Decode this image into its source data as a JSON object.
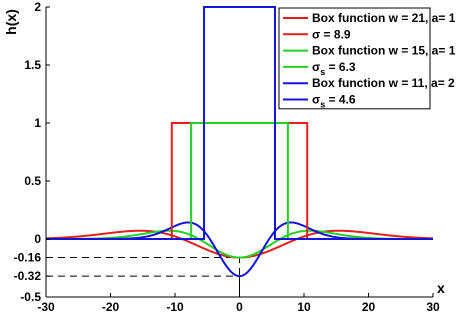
{
  "chart_data": {
    "type": "line",
    "title": "",
    "xlabel": "x",
    "ylabel": "h(x)",
    "xlim": [
      -30,
      30
    ],
    "ylim": [
      -0.5,
      2
    ],
    "xticks": [
      "-30",
      "-20",
      "-10",
      "0",
      "10",
      "20",
      "30"
    ],
    "yticks": [
      "-0.5",
      "-0.32",
      "-0.16",
      "0",
      "0.5",
      "1",
      "1.5",
      "2"
    ],
    "ytick_values": [
      -0.5,
      -0.32,
      -0.16,
      0,
      0.5,
      1,
      1.5,
      2
    ],
    "grid": false,
    "legend_position": "top-right",
    "series": [
      {
        "name": "Box function w = 21, a= 1",
        "kind": "box",
        "width": 21,
        "height": 1,
        "color": "#e3211c"
      },
      {
        "name": "Box function w = 15, a= 1",
        "kind": "box",
        "width": 15,
        "height": 1,
        "color": "#23d123"
      },
      {
        "name": "Box function w = 11, a= 2",
        "kind": "box",
        "width": 11,
        "height": 2,
        "color": "#1414d8"
      },
      {
        "name_main": "σ",
        "name_sub": "",
        "name_value": " = 8.9",
        "kind": "mexican_hat",
        "sigma": 8.9,
        "min": -0.16,
        "color": "#e3211c"
      },
      {
        "name_main": "σ",
        "name_sub": "s",
        "name_value": " = 6.3",
        "kind": "mexican_hat",
        "sigma": 6.3,
        "min": -0.16,
        "color": "#23d123"
      },
      {
        "name_main": "σ",
        "name_sub": "s",
        "name_value": " = 4.6",
        "kind": "mexican_hat",
        "sigma": 4.6,
        "min": -0.32,
        "color": "#1414d8"
      }
    ],
    "annotations": [
      {
        "type": "dashed-guide",
        "x": 0,
        "y": -0.16
      },
      {
        "type": "dashed-guide",
        "x": 0,
        "y": -0.32
      }
    ],
    "legend": [
      {
        "series": 0,
        "main": "Box function w = 21, a= 1",
        "sub": "",
        "rest": ""
      },
      {
        "series": 3,
        "main": "σ",
        "sub": "",
        "rest": " = 8.9"
      },
      {
        "series": 1,
        "main": "Box function w = 15, a= 1",
        "sub": "",
        "rest": ""
      },
      {
        "series": 4,
        "main": "σ",
        "sub": "s",
        "rest": " = 6.3"
      },
      {
        "series": 2,
        "main": "Box function w = 11, a= 2",
        "sub": "",
        "rest": ""
      },
      {
        "series": 5,
        "main": "σ",
        "sub": "s",
        "rest": " = 4.6"
      }
    ]
  }
}
